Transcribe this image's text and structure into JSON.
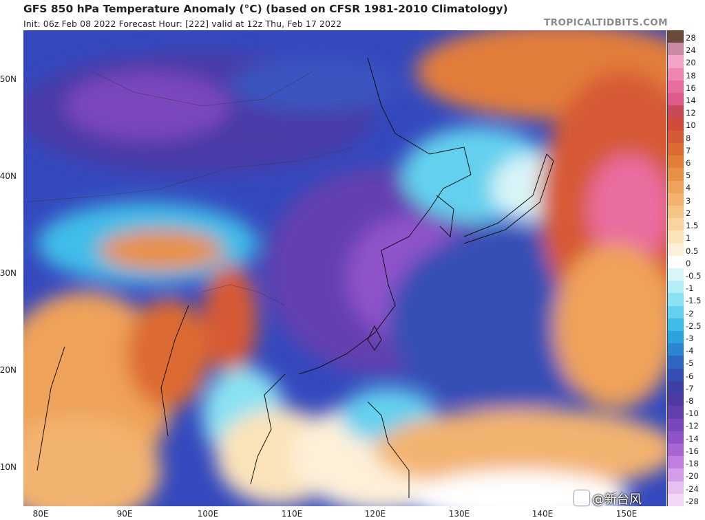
{
  "header": {
    "title": "GFS 850 hPa Temperature Anomaly (°C) (based on CFSR 1981-2010 Climatology)",
    "subtitle": "Init: 06z Feb 08 2022   Forecast Hour: [222]   valid at 12z Thu, Feb 17 2022",
    "site": "TROPICALTIDBITS.COM"
  },
  "map": {
    "region": "East Asia / Western Pacific",
    "lon_range": [
      78,
      157
    ],
    "lat_range": [
      5,
      56
    ],
    "lat_labels": [
      "50N",
      "40N",
      "30N",
      "20N",
      "10N"
    ],
    "lon_labels": [
      "80E",
      "90E",
      "100E",
      "110E",
      "120E",
      "130E",
      "140E",
      "150E"
    ]
  },
  "colorbar": {
    "labels": [
      "28",
      "24",
      "20",
      "18",
      "16",
      "14",
      "12",
      "10",
      "8",
      "7",
      "6",
      "5",
      "4",
      "3",
      "2",
      "1.5",
      "1",
      "0.5",
      "0",
      "-0.5",
      "-1",
      "-1.5",
      "-2",
      "-2.5",
      "-3",
      "-4",
      "-5",
      "-6",
      "-7",
      "-8",
      "-10",
      "-12",
      "-14",
      "-16",
      "-18",
      "-20",
      "-24",
      "-28"
    ],
    "colors": [
      "#6b4a3a",
      "#c98aa6",
      "#f4a3c8",
      "#ef86b2",
      "#e96d9f",
      "#de5a8a",
      "#c94a57",
      "#d24a3a",
      "#d65a36",
      "#dc6a33",
      "#e27d3a",
      "#e99047",
      "#efa25a",
      "#f3b36f",
      "#f6c486",
      "#f9d49f",
      "#fbe3ba",
      "#fdf0d8",
      "#ffffff",
      "#d8f5f8",
      "#b3eef6",
      "#8ae2f2",
      "#63d1ee",
      "#3fbde8",
      "#2aa3df",
      "#2b86d1",
      "#2e66c2",
      "#3550b5",
      "#3f3fa8",
      "#4d3aa3",
      "#6340b0",
      "#7a46bd",
      "#9052c9",
      "#a865d4",
      "#c07fe0",
      "#d59ce9",
      "#e8bff2",
      "#f4d8f7"
    ]
  },
  "watermark": {
    "text": "@新台风"
  }
}
